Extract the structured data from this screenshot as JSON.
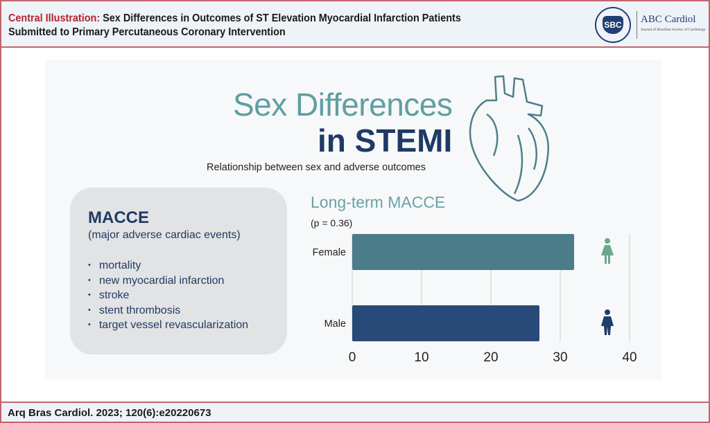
{
  "header": {
    "label": "Central Illustration:",
    "title_line1": "Sex Differences in Outcomes of ST Elevation Myocardial Infarction Patients",
    "title_line2": "Submitted to Primary Percutaneous Coronary Intervention",
    "logo_text": "SBC",
    "journal": "ABC Cardiol",
    "journal_sub": "Journal of Brazilian Society of Cardiology"
  },
  "illustration": {
    "title_line1": "Sex Differences",
    "title_line2": "in STEMI",
    "subtitle": "Relationship between sex and adverse outcomes"
  },
  "macce": {
    "title": "MACCE",
    "subtitle": "(major adverse cardiac events)",
    "items": [
      "mortality",
      "new myocardial infarction",
      "stroke",
      "stent thrombosis",
      "target vessel revascularization"
    ]
  },
  "chart_data": {
    "type": "bar",
    "orientation": "horizontal",
    "title": "Long-term MACCE",
    "annotation": "(p = 0.36)",
    "categories": [
      "Female",
      "Male"
    ],
    "values": [
      32,
      27
    ],
    "colors": [
      "#4a7c8a",
      "#284a78"
    ],
    "xlim": [
      0,
      40
    ],
    "xticks": [
      0,
      10,
      20,
      30,
      40
    ],
    "grid": true
  },
  "footer": {
    "citation": "Arq Bras Cardiol. 2023; 120(6):e20220673"
  }
}
